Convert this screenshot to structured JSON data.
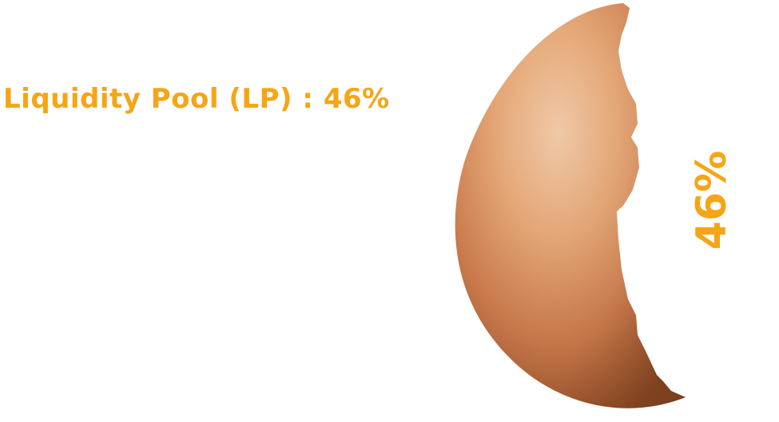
{
  "label": {
    "text": "Liquidity Pool (LP) : 46%"
  },
  "percent_text": "46%",
  "colors": {
    "accent": "#f5a515",
    "shell_light": "#f2cba9",
    "shell_mid": "#d98e5a",
    "shell_dark": "#8c4a25"
  },
  "icons": {
    "shell": "eggshell-fragment"
  }
}
